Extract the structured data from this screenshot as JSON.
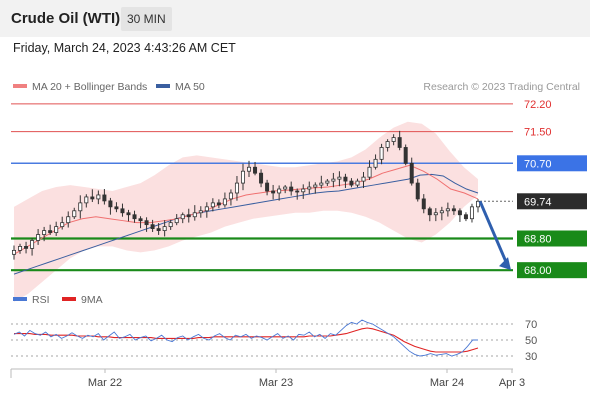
{
  "header": {
    "instrument": "Crude Oil (WTI)",
    "timeframe": "30 MIN",
    "timestamp": "Friday, March 24, 2023 4:43:26 AM CET"
  },
  "chart_data": [
    {
      "type": "candlestick",
      "legend": [
        {
          "label": "MA 20 + Bollinger Bands",
          "color": "#f08080"
        },
        {
          "label": "MA 50",
          "color": "#3a5fa0"
        }
      ],
      "credit": "Research © 2023 Trading Central",
      "ylim": [
        67.6,
        72.4
      ],
      "x_ticks": [
        "Mar 22",
        "Mar 23",
        "Mar 24",
        "Apr 3"
      ],
      "levels": [
        {
          "value": 72.2,
          "label": "72.20",
          "style": "resistance-thin"
        },
        {
          "value": 71.5,
          "label": "71.50",
          "style": "resistance-thin"
        },
        {
          "value": 70.7,
          "label": "70.70",
          "style": "pivot"
        },
        {
          "value": 69.74,
          "label": "69.74",
          "style": "last-price"
        },
        {
          "value": 68.8,
          "label": "68.80",
          "style": "support"
        },
        {
          "value": 68.0,
          "label": "68.00",
          "style": "support"
        }
      ],
      "close_series": [
        68.5,
        68.6,
        68.55,
        68.75,
        68.9,
        69.0,
        68.95,
        69.1,
        69.2,
        69.35,
        69.5,
        69.7,
        69.85,
        69.8,
        69.9,
        69.75,
        69.6,
        69.55,
        69.45,
        69.4,
        69.3,
        69.25,
        69.15,
        69.05,
        69.0,
        69.1,
        69.2,
        69.3,
        69.4,
        69.35,
        69.45,
        69.5,
        69.6,
        69.7,
        69.65,
        69.8,
        69.95,
        70.2,
        70.5,
        70.6,
        70.45,
        70.2,
        70.0,
        69.95,
        70.05,
        70.1,
        70.0,
        69.98,
        70.05,
        70.1,
        70.15,
        70.2,
        70.25,
        70.3,
        70.35,
        70.25,
        70.15,
        70.25,
        70.35,
        70.6,
        70.8,
        71.1,
        71.25,
        71.35,
        71.1,
        70.7,
        70.2,
        69.8,
        69.55,
        69.4,
        69.45,
        69.5,
        69.55,
        69.5,
        69.4,
        69.3,
        69.6,
        69.74
      ],
      "ma50": [
        67.9,
        68.0,
        68.1,
        68.2,
        68.3,
        68.4,
        68.5,
        68.6,
        68.7,
        68.8,
        68.9,
        69.0,
        69.1,
        69.2,
        69.3,
        69.38,
        69.45,
        69.5,
        69.55,
        69.6,
        69.65,
        69.7,
        69.75,
        69.8,
        69.85,
        69.9,
        69.95,
        69.98,
        70.0,
        70.05,
        70.1,
        70.15,
        70.2,
        70.25,
        70.3,
        70.4,
        70.42,
        70.38,
        70.2,
        70.05,
        69.95
      ],
      "ma20": [
        68.4,
        68.6,
        68.8,
        69.0,
        69.2,
        69.3,
        69.35,
        69.3,
        69.25,
        69.2,
        69.2,
        69.25,
        69.3,
        69.4,
        69.5,
        69.65,
        69.8,
        69.9,
        69.95,
        70.0,
        70.02,
        70.05,
        70.08,
        70.1,
        70.15,
        70.2,
        70.3,
        70.45,
        70.55,
        70.65,
        70.5,
        70.3,
        70.05,
        69.95,
        69.8
      ],
      "upper_band": [
        69.6,
        69.8,
        70.0,
        70.1,
        70.15,
        70.1,
        70.05,
        70.0,
        70.1,
        70.2,
        70.4,
        70.65,
        70.85,
        70.9,
        70.85,
        70.8,
        70.75,
        70.7,
        70.65,
        70.6,
        70.6,
        70.65,
        70.7,
        70.75,
        70.85,
        71.05,
        71.35,
        71.6,
        71.75,
        71.7,
        71.45,
        71.0,
        70.6,
        70.3
      ],
      "lower_band": [
        67.2,
        67.4,
        67.7,
        68.0,
        68.3,
        68.5,
        68.6,
        68.6,
        68.5,
        68.45,
        68.5,
        68.6,
        68.75,
        68.85,
        68.95,
        69.1,
        69.2,
        69.3,
        69.35,
        69.4,
        69.45,
        69.45,
        69.5,
        69.5,
        69.45,
        69.35,
        69.2,
        69.0,
        68.8,
        68.7,
        68.9,
        69.2,
        69.6,
        69.9
      ],
      "forecast_arrow": {
        "from": 69.74,
        "to": 68.0
      }
    },
    {
      "type": "line",
      "legend": [
        {
          "label": "RSI",
          "color": "#4a78d4"
        },
        {
          "label": "9MA",
          "color": "#e02424"
        }
      ],
      "y_ticks": [
        "70",
        "50",
        "30"
      ],
      "ylim": [
        20,
        80
      ],
      "rsi": [
        57,
        60,
        55,
        62,
        58,
        56,
        60,
        54,
        57,
        52,
        55,
        59,
        55,
        52,
        56,
        54,
        58,
        50,
        55,
        60,
        52,
        54,
        57,
        50,
        53,
        55,
        49,
        52,
        56,
        50,
        48,
        53,
        55,
        50,
        54,
        57,
        52,
        50,
        55,
        58,
        53,
        50,
        56,
        54,
        57,
        52,
        55,
        53,
        50,
        54,
        58,
        52,
        55,
        50,
        57,
        56,
        60,
        54,
        57,
        52,
        58,
        56,
        62,
        68,
        72,
        70,
        75,
        72,
        70,
        66,
        62,
        58,
        54,
        48,
        42,
        36,
        32,
        30,
        31,
        33,
        31,
        32,
        33,
        30,
        32,
        35,
        42,
        50,
        50
      ],
      "ma9": [
        58,
        58,
        58,
        58,
        57,
        57,
        57,
        56,
        56,
        56,
        56,
        56,
        55,
        55,
        55,
        55,
        54,
        54,
        54,
        53,
        53,
        53,
        53,
        53,
        53,
        53,
        53,
        52,
        52,
        52,
        52,
        52,
        52,
        52,
        52,
        53,
        53,
        53,
        54,
        54,
        54,
        54,
        54,
        54,
        54,
        54,
        54,
        54,
        54,
        54,
        54,
        54,
        54,
        54,
        54,
        54,
        55,
        55,
        55,
        55,
        55,
        56,
        57,
        58,
        60,
        62,
        64,
        65,
        64,
        62,
        60,
        58,
        56,
        52,
        48,
        45,
        42,
        40,
        38,
        36,
        35,
        35,
        35,
        35,
        35,
        35,
        36,
        38,
        40
      ]
    }
  ]
}
